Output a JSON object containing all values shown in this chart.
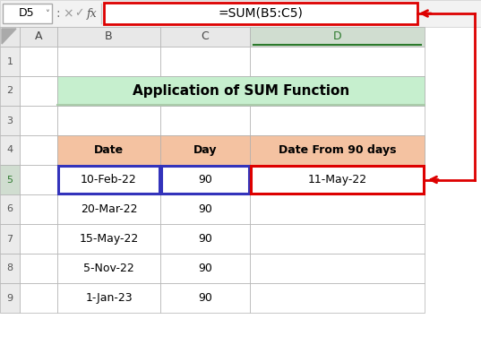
{
  "title": "Application of SUM Function",
  "formula_bar_cell": "D5",
  "formula_bar_formula": "=SUM(B5:C5)",
  "col_headers": [
    "A",
    "B",
    "C",
    "D"
  ],
  "row_numbers": [
    "1",
    "2",
    "3",
    "4",
    "5",
    "6",
    "7",
    "8",
    "9"
  ],
  "table_headers": [
    "Date",
    "Day",
    "Date From 90 days"
  ],
  "dates": [
    "10-Feb-22",
    "20-Mar-22",
    "15-May-22",
    "5-Nov-22",
    "1-Jan-23"
  ],
  "days": [
    "90",
    "90",
    "90",
    "90",
    "90"
  ],
  "result": "11-May-22",
  "header_bg": "#F4C2A1",
  "title_bg": "#C6EFCE",
  "fig_bg": "#FFFFFF",
  "blue_highlight": "#3333BB",
  "red_highlight": "#DD0000",
  "col_header_bg": "#E8E8E8",
  "selected_col_bg": "#D0DDD0",
  "row_num_bg": "#EBEBEB",
  "row5_num_bg": "#D0DDD0",
  "grid_color": "#B0B0B0",
  "formula_bar_bg": "#F2F2F2"
}
